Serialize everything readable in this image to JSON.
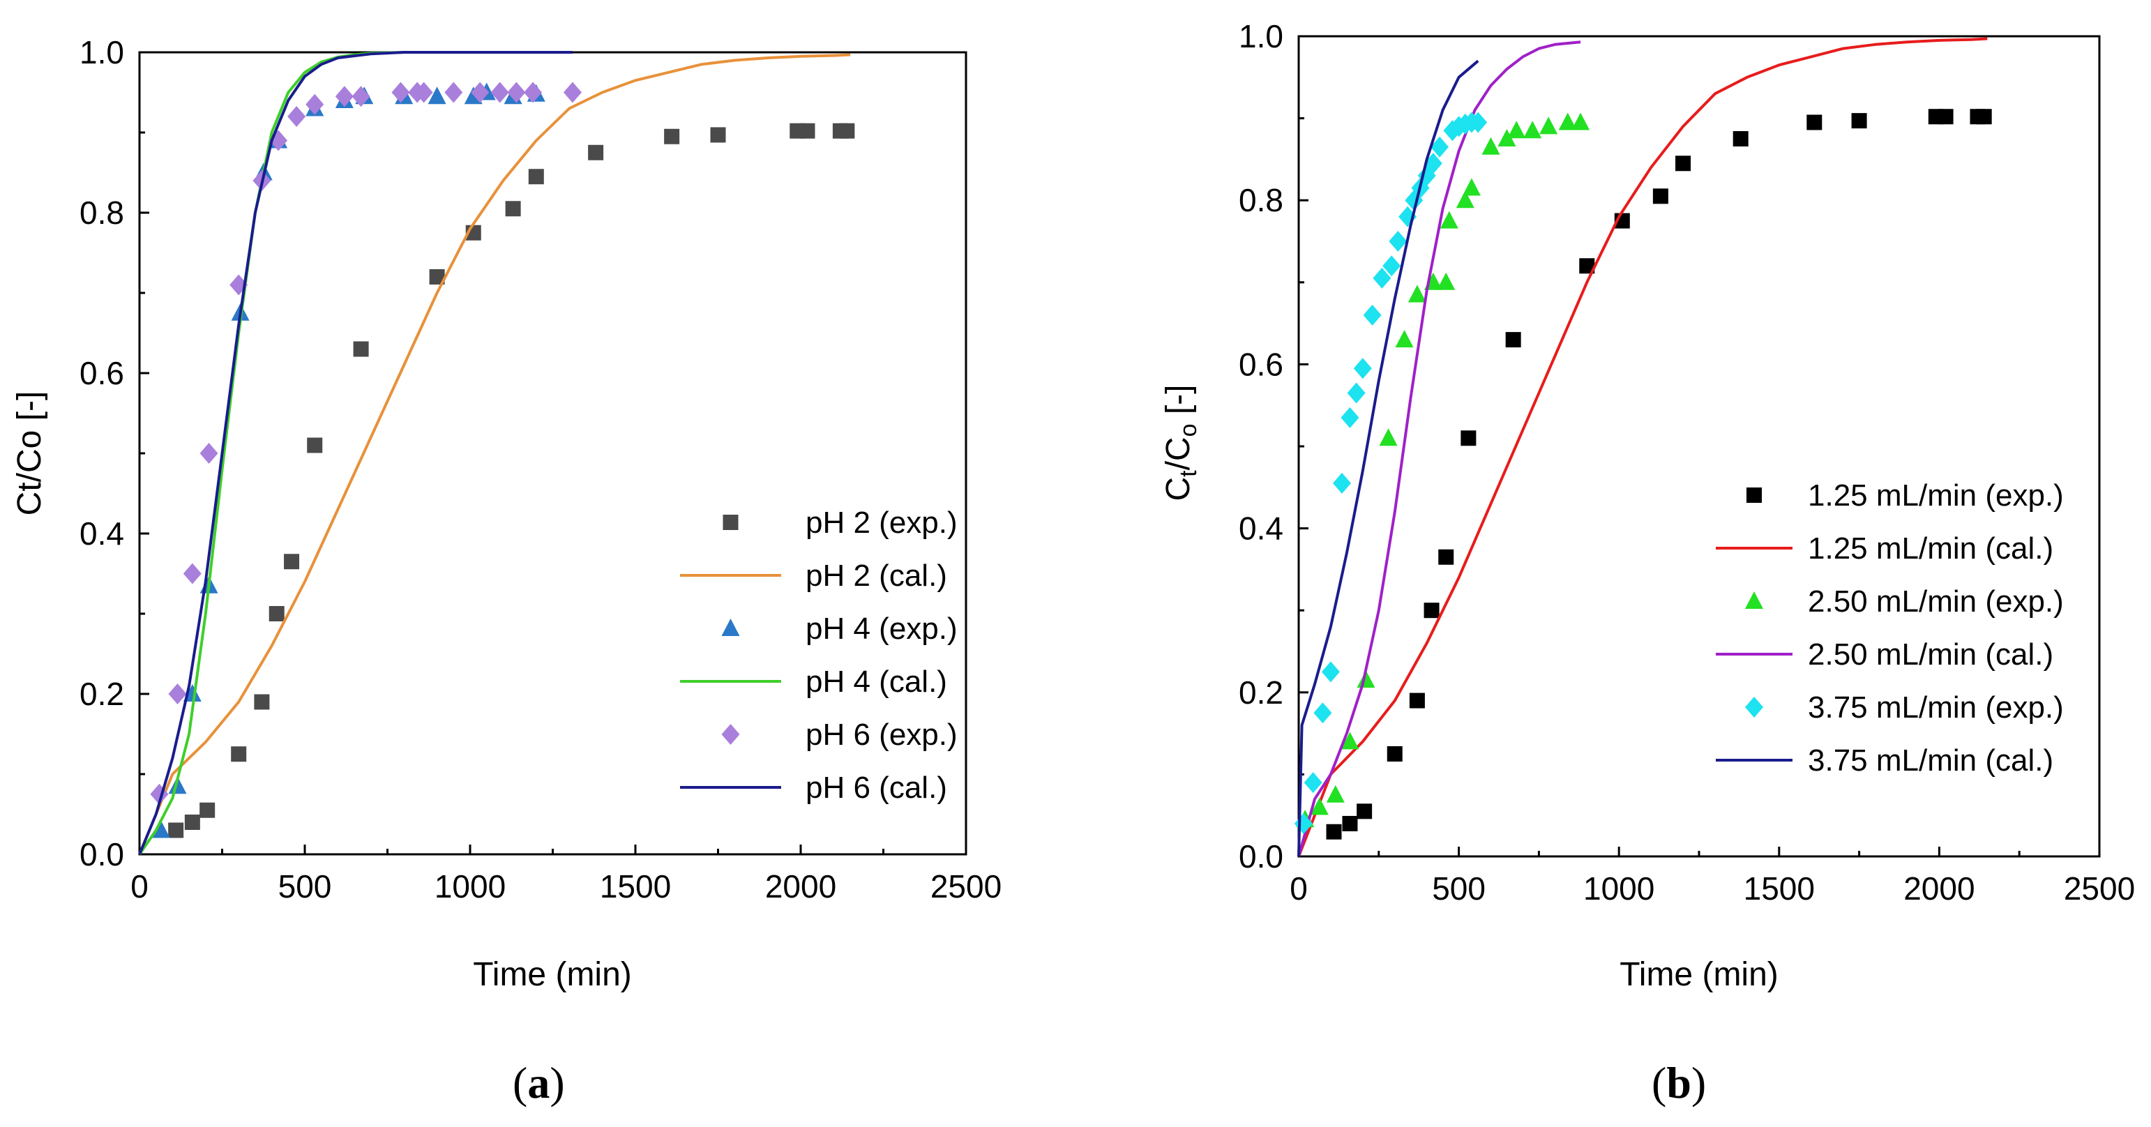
{
  "chart_data": [
    {
      "type": "scatter",
      "panel_label": "a",
      "title": "",
      "xlabel": "Time (min)",
      "ylabel": "Ct/Co [-]",
      "ylabel_parts": [
        "Ct/Co [-]"
      ],
      "xlim": [
        0,
        2500
      ],
      "ylim": [
        0,
        1.0
      ],
      "xticks": [
        "0",
        "500",
        "1000",
        "1500",
        "2000",
        "2500"
      ],
      "yticks": [
        "0.0",
        "0.2",
        "0.4",
        "0.6",
        "0.8",
        "1.0"
      ],
      "legend_position": "bottom-right",
      "series": [
        {
          "name": "pH 2 (exp.)",
          "kind": "points",
          "marker": "square",
          "color": "#4a4a4a",
          "x": [
            110,
            160,
            205,
            300,
            370,
            415,
            460,
            530,
            670,
            900,
            1010,
            1130,
            1200,
            1380,
            1610,
            1750,
            1990,
            2020,
            2120,
            2140
          ],
          "y": [
            0.03,
            0.04,
            0.055,
            0.125,
            0.19,
            0.3,
            0.365,
            0.51,
            0.63,
            0.72,
            0.775,
            0.805,
            0.845,
            0.875,
            0.895,
            0.897,
            0.902,
            0.902,
            0.902,
            0.902
          ]
        },
        {
          "name": "pH 2 (cal.)",
          "kind": "line",
          "color": "#e8913a",
          "x": [
            0,
            100,
            200,
            300,
            400,
            500,
            600,
            700,
            800,
            900,
            1000,
            1100,
            1200,
            1300,
            1400,
            1500,
            1600,
            1700,
            1800,
            1900,
            2000,
            2100,
            2150
          ],
          "y": [
            0.0,
            0.1,
            0.14,
            0.19,
            0.26,
            0.34,
            0.43,
            0.52,
            0.61,
            0.7,
            0.78,
            0.84,
            0.89,
            0.93,
            0.95,
            0.965,
            0.975,
            0.985,
            0.99,
            0.993,
            0.995,
            0.996,
            0.997
          ]
        },
        {
          "name": "pH 4 (exp.)",
          "kind": "points",
          "marker": "triangle",
          "color": "#2a78c8",
          "x": [
            65,
            115,
            160,
            210,
            305,
            375,
            420,
            530,
            620,
            680,
            800,
            900,
            1010,
            1050,
            1130,
            1200
          ],
          "y": [
            0.03,
            0.085,
            0.2,
            0.335,
            0.675,
            0.85,
            0.89,
            0.93,
            0.94,
            0.945,
            0.945,
            0.945,
            0.945,
            0.95,
            0.945,
            0.948
          ]
        },
        {
          "name": "pH 4 (cal.)",
          "kind": "line",
          "color": "#3fcf2a",
          "x": [
            0,
            50,
            100,
            150,
            200,
            250,
            300,
            350,
            400,
            450,
            500,
            550,
            600,
            650,
            700,
            800,
            900,
            1000,
            1100,
            1200,
            1300
          ],
          "y": [
            0.0,
            0.03,
            0.07,
            0.15,
            0.3,
            0.48,
            0.65,
            0.8,
            0.9,
            0.95,
            0.975,
            0.988,
            0.994,
            0.997,
            0.999,
            1.0,
            1.0,
            1.0,
            1.0,
            1.0,
            1.0
          ]
        },
        {
          "name": "pH 6 (exp.)",
          "kind": "points",
          "marker": "diamond",
          "color": "#a97fdc",
          "x": [
            60,
            115,
            160,
            210,
            300,
            370,
            420,
            475,
            530,
            620,
            670,
            790,
            840,
            860,
            950,
            1030,
            1090,
            1140,
            1190,
            1310
          ],
          "y": [
            0.075,
            0.2,
            0.35,
            0.5,
            0.71,
            0.84,
            0.89,
            0.92,
            0.935,
            0.945,
            0.945,
            0.95,
            0.95,
            0.95,
            0.95,
            0.95,
            0.95,
            0.95,
            0.95,
            0.95
          ]
        },
        {
          "name": "pH 6 (cal.)",
          "kind": "line",
          "color": "#1a1c8c",
          "x": [
            0,
            50,
            100,
            150,
            200,
            250,
            300,
            350,
            400,
            450,
            500,
            550,
            600,
            700,
            800,
            900,
            1000,
            1100,
            1200,
            1310
          ],
          "y": [
            0.0,
            0.05,
            0.12,
            0.21,
            0.34,
            0.5,
            0.66,
            0.8,
            0.89,
            0.94,
            0.97,
            0.985,
            0.993,
            0.998,
            1.0,
            1.0,
            1.0,
            1.0,
            1.0,
            1.0
          ]
        }
      ]
    },
    {
      "type": "scatter",
      "panel_label": "b",
      "title": "",
      "xlabel": "Time (min)",
      "ylabel": "Ct/Co [-]",
      "ylabel_parts": [
        "C",
        "t",
        "/C",
        "o",
        " [-]"
      ],
      "xlim": [
        0,
        2500
      ],
      "ylim": [
        0,
        1.0
      ],
      "xticks": [
        "0",
        "500",
        "1000",
        "1500",
        "2000",
        "2500"
      ],
      "yticks": [
        "0.0",
        "0.2",
        "0.4",
        "0.6",
        "0.8",
        "1.0"
      ],
      "legend_position": "bottom-right",
      "series": [
        {
          "name": "1.25 mL/min (exp.)",
          "kind": "points",
          "marker": "square",
          "color": "#000000",
          "x": [
            110,
            160,
            205,
            300,
            370,
            415,
            460,
            530,
            670,
            900,
            1010,
            1130,
            1200,
            1380,
            1610,
            1750,
            1990,
            2020,
            2120,
            2140
          ],
          "y": [
            0.03,
            0.04,
            0.055,
            0.125,
            0.19,
            0.3,
            0.365,
            0.51,
            0.63,
            0.72,
            0.775,
            0.805,
            0.845,
            0.875,
            0.895,
            0.897,
            0.902,
            0.902,
            0.902,
            0.902
          ]
        },
        {
          "name": "1.25 mL/min (cal.)",
          "kind": "line",
          "color": "#e81c1c",
          "x": [
            0,
            100,
            200,
            300,
            400,
            500,
            600,
            700,
            800,
            900,
            1000,
            1100,
            1200,
            1300,
            1400,
            1500,
            1600,
            1700,
            1800,
            1900,
            2000,
            2100,
            2150
          ],
          "y": [
            0.0,
            0.1,
            0.14,
            0.19,
            0.26,
            0.34,
            0.43,
            0.52,
            0.61,
            0.7,
            0.78,
            0.84,
            0.89,
            0.93,
            0.95,
            0.965,
            0.975,
            0.985,
            0.99,
            0.993,
            0.995,
            0.996,
            0.997
          ]
        },
        {
          "name": "2.50 mL/min (exp.)",
          "kind": "points",
          "marker": "triangle",
          "color": "#22e022",
          "x": [
            20,
            65,
            115,
            160,
            210,
            280,
            330,
            370,
            420,
            460,
            470,
            520,
            540,
            600,
            650,
            680,
            730,
            780,
            840,
            880
          ],
          "y": [
            0.045,
            0.06,
            0.075,
            0.14,
            0.215,
            0.51,
            0.63,
            0.685,
            0.7,
            0.7,
            0.775,
            0.8,
            0.815,
            0.865,
            0.875,
            0.885,
            0.885,
            0.89,
            0.895,
            0.895
          ]
        },
        {
          "name": "2.50 mL/min (cal.)",
          "kind": "line",
          "color": "#a020c8",
          "x": [
            0,
            50,
            100,
            150,
            200,
            250,
            300,
            350,
            400,
            450,
            500,
            550,
            600,
            650,
            700,
            750,
            800,
            880
          ],
          "y": [
            0.0,
            0.07,
            0.1,
            0.15,
            0.21,
            0.3,
            0.42,
            0.56,
            0.69,
            0.79,
            0.86,
            0.91,
            0.94,
            0.96,
            0.975,
            0.985,
            0.99,
            0.993
          ]
        },
        {
          "name": "3.75 mL/min (exp.)",
          "kind": "points",
          "marker": "diamond",
          "color": "#1de2f0",
          "x": [
            15,
            45,
            75,
            100,
            135,
            160,
            180,
            200,
            230,
            260,
            290,
            310,
            340,
            360,
            380,
            400,
            420,
            440,
            480,
            500,
            520,
            540,
            560
          ],
          "y": [
            0.04,
            0.09,
            0.175,
            0.225,
            0.455,
            0.535,
            0.565,
            0.595,
            0.66,
            0.705,
            0.72,
            0.75,
            0.78,
            0.8,
            0.815,
            0.83,
            0.845,
            0.865,
            0.885,
            0.89,
            0.893,
            0.895,
            0.895
          ]
        },
        {
          "name": "3.75 mL/min (cal.)",
          "kind": "line",
          "color": "#1a1c8c",
          "x": [
            0,
            10,
            50,
            100,
            150,
            200,
            250,
            300,
            350,
            400,
            450,
            500,
            560
          ],
          "y": [
            0.0,
            0.16,
            0.21,
            0.28,
            0.37,
            0.47,
            0.58,
            0.68,
            0.77,
            0.85,
            0.91,
            0.95,
            0.97
          ]
        }
      ]
    }
  ]
}
